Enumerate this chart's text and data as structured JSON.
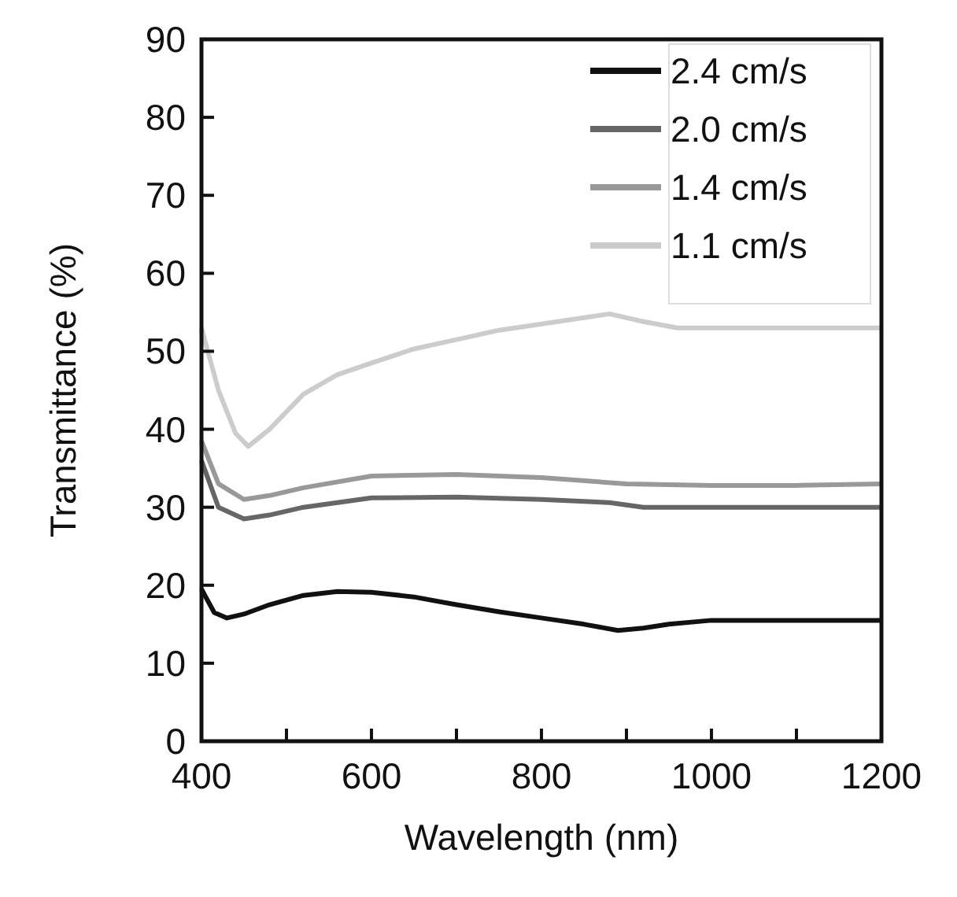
{
  "chart_data": {
    "type": "line",
    "xlabel": "Wavelength (nm)",
    "ylabel": "Transmittance (%)",
    "xlim": [
      400,
      1200
    ],
    "ylim": [
      0,
      90
    ],
    "xticks": [
      400,
      {
        "value": 500,
        "label": null
      },
      600,
      {
        "value": 700,
        "label": null
      },
      800,
      {
        "value": 900,
        "label": null
      },
      1000,
      {
        "value": 1100,
        "label": null
      },
      1200
    ],
    "yticks": [
      0,
      10,
      20,
      30,
      40,
      50,
      60,
      70,
      80,
      90
    ],
    "grid": false,
    "legend": "top right",
    "marker": "none",
    "line_style": "solid",
    "series": [
      {
        "name": "2.4 cm/s",
        "color": "#111111",
        "x": [
          400,
          415,
          430,
          450,
          480,
          520,
          560,
          600,
          650,
          700,
          750,
          800,
          850,
          890,
          920,
          950,
          1000,
          1100,
          1200
        ],
        "values": [
          19.5,
          16.5,
          15.8,
          16.3,
          17.5,
          18.7,
          19.2,
          19.1,
          18.5,
          17.5,
          16.6,
          15.8,
          15,
          14.2,
          14.5,
          15,
          15.5,
          15.5,
          15.5
        ]
      },
      {
        "name": "2.0 cm/s",
        "color": "#666666",
        "x": [
          400,
          420,
          450,
          480,
          520,
          600,
          700,
          800,
          880,
          920,
          1000,
          1100,
          1200
        ],
        "values": [
          36,
          30,
          28.5,
          29,
          30,
          31.2,
          31.3,
          31,
          30.6,
          30,
          30,
          30,
          30
        ]
      },
      {
        "name": "1.4 cm/s",
        "color": "#999999",
        "x": [
          400,
          420,
          450,
          480,
          520,
          600,
          700,
          800,
          900,
          1000,
          1100,
          1200
        ],
        "values": [
          38.5,
          33,
          31,
          31.5,
          32.5,
          34,
          34.2,
          33.8,
          33,
          32.8,
          32.8,
          33
        ]
      },
      {
        "name": "1.1 cm/s",
        "color": "#cccccc",
        "x": [
          400,
          420,
          440,
          455,
          480,
          520,
          560,
          600,
          650,
          700,
          750,
          800,
          880,
          920,
          960,
          1000,
          1100,
          1200
        ],
        "values": [
          53,
          45,
          39.5,
          37.8,
          40,
          44.5,
          47,
          48.5,
          50.3,
          51.5,
          52.7,
          53.5,
          54.8,
          53.8,
          53,
          53,
          53,
          53
        ]
      }
    ]
  }
}
